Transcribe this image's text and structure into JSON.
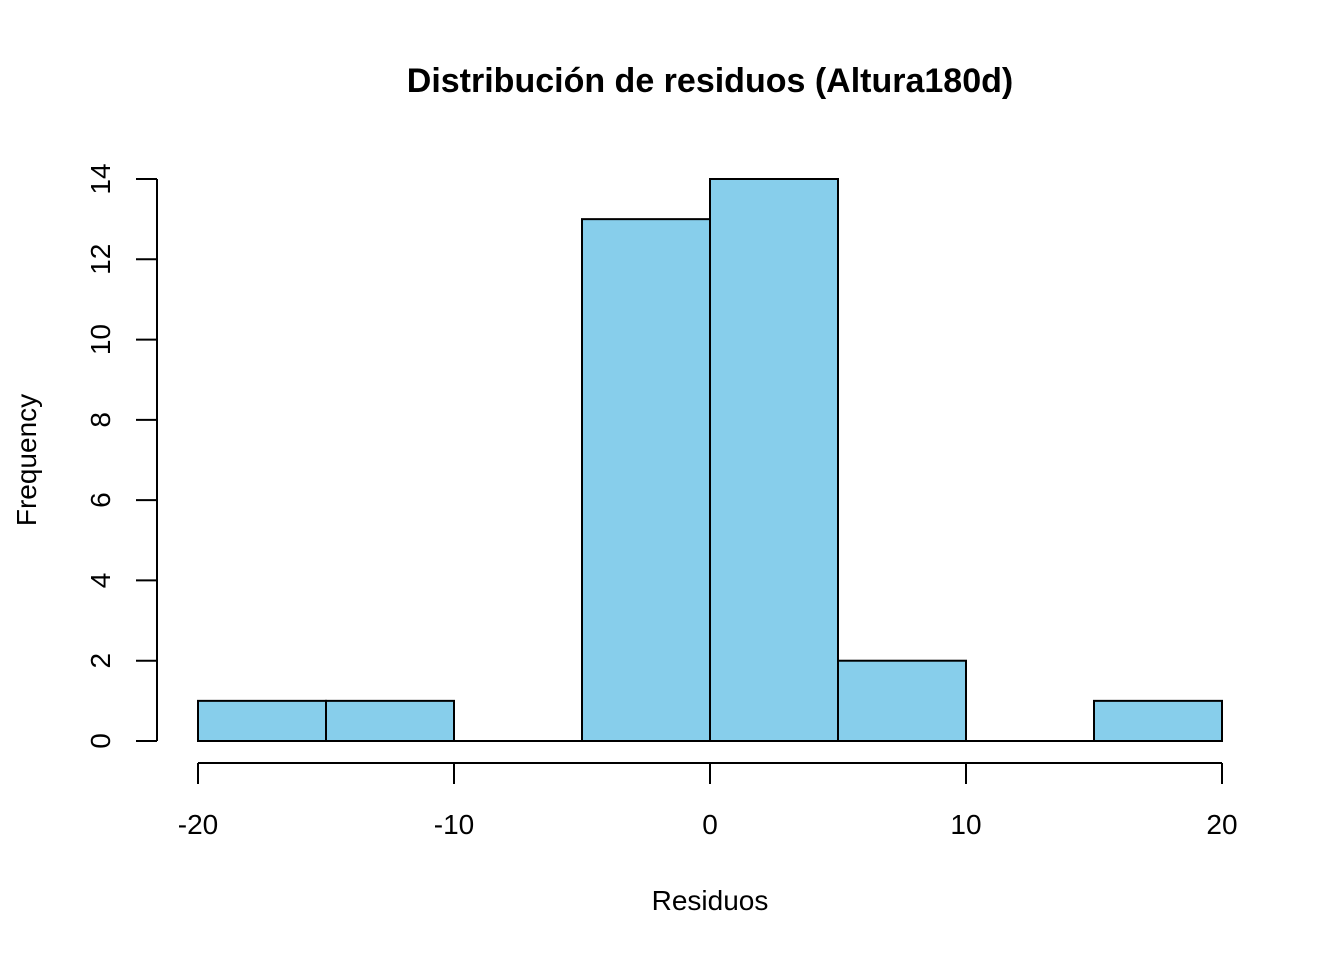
{
  "chart_data": {
    "type": "bar",
    "title": "Distribución de residuos (Altura180d)",
    "xlabel": "Residuos",
    "ylabel": "Frequency",
    "bin_edges": [
      -20,
      -15,
      -10,
      -5,
      0,
      5,
      10,
      15,
      20
    ],
    "values": [
      1,
      1,
      0,
      13,
      14,
      2,
      0,
      1
    ],
    "xlim": [
      -20,
      20
    ],
    "ylim": [
      0,
      14
    ],
    "x_ticks": [
      -20,
      -10,
      0,
      10,
      20
    ],
    "y_ticks": [
      0,
      2,
      4,
      6,
      8,
      10,
      12,
      14
    ],
    "bar_color": "#87CEEB",
    "border_color": "#000000",
    "grid": false
  }
}
